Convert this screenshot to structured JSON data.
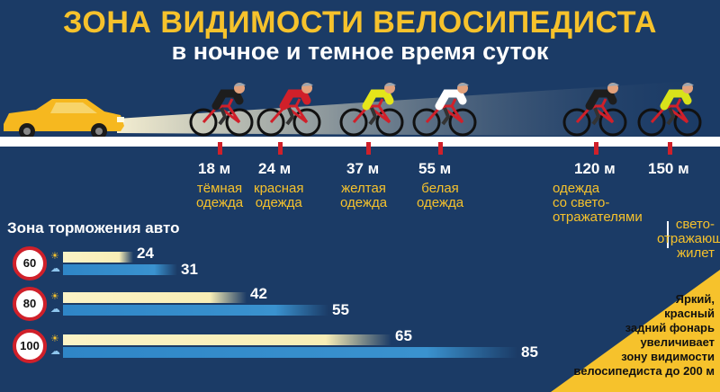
{
  "title": "ЗОНА ВИДИМОСТИ ВЕЛОСИПЕДИСТА",
  "subtitle": "в ночное и темное время суток",
  "colors": {
    "background": "#1b3b66",
    "accent": "#f6c22c",
    "marker": "#d0202a",
    "rain_bar": "#2f86c7",
    "sun_bar": "#fbf3c6"
  },
  "visibility": [
    {
      "distance": "18 м",
      "label": "тёмная\nодежда",
      "jersey": "#1d1d1d"
    },
    {
      "distance": "24 м",
      "label": "красная\nодежда",
      "jersey": "#d0202a"
    },
    {
      "distance": "37 м",
      "label": "желтая\nодежда",
      "jersey": "#e5e61a"
    },
    {
      "distance": "55 м",
      "label": "белая\nодежда",
      "jersey": "#ffffff"
    },
    {
      "distance": "120 м",
      "label": "одежда\nсо свето-\nотражателями",
      "jersey": "#1d1d1d"
    },
    {
      "distance": "150 м",
      "label": "свето-\nотражающий\nжилет",
      "jersey": "#d8e21a"
    }
  ],
  "braking": {
    "title": "Зона торможения авто",
    "rows": [
      {
        "speed": "60",
        "dry": "24",
        "wet": "31"
      },
      {
        "speed": "80",
        "dry": "42",
        "wet": "55"
      },
      {
        "speed": "100",
        "dry": "65",
        "wet": "85"
      }
    ]
  },
  "note": "Яркий,\nкрасный\nзадний фонарь\nувеличивает\nзону видимости\nвелосипедиста до 200 м",
  "icons": {
    "car": "car-icon",
    "cyclist": "cyclist-icon",
    "sun": "sun-icon",
    "rain": "rain-cloud-icon"
  }
}
